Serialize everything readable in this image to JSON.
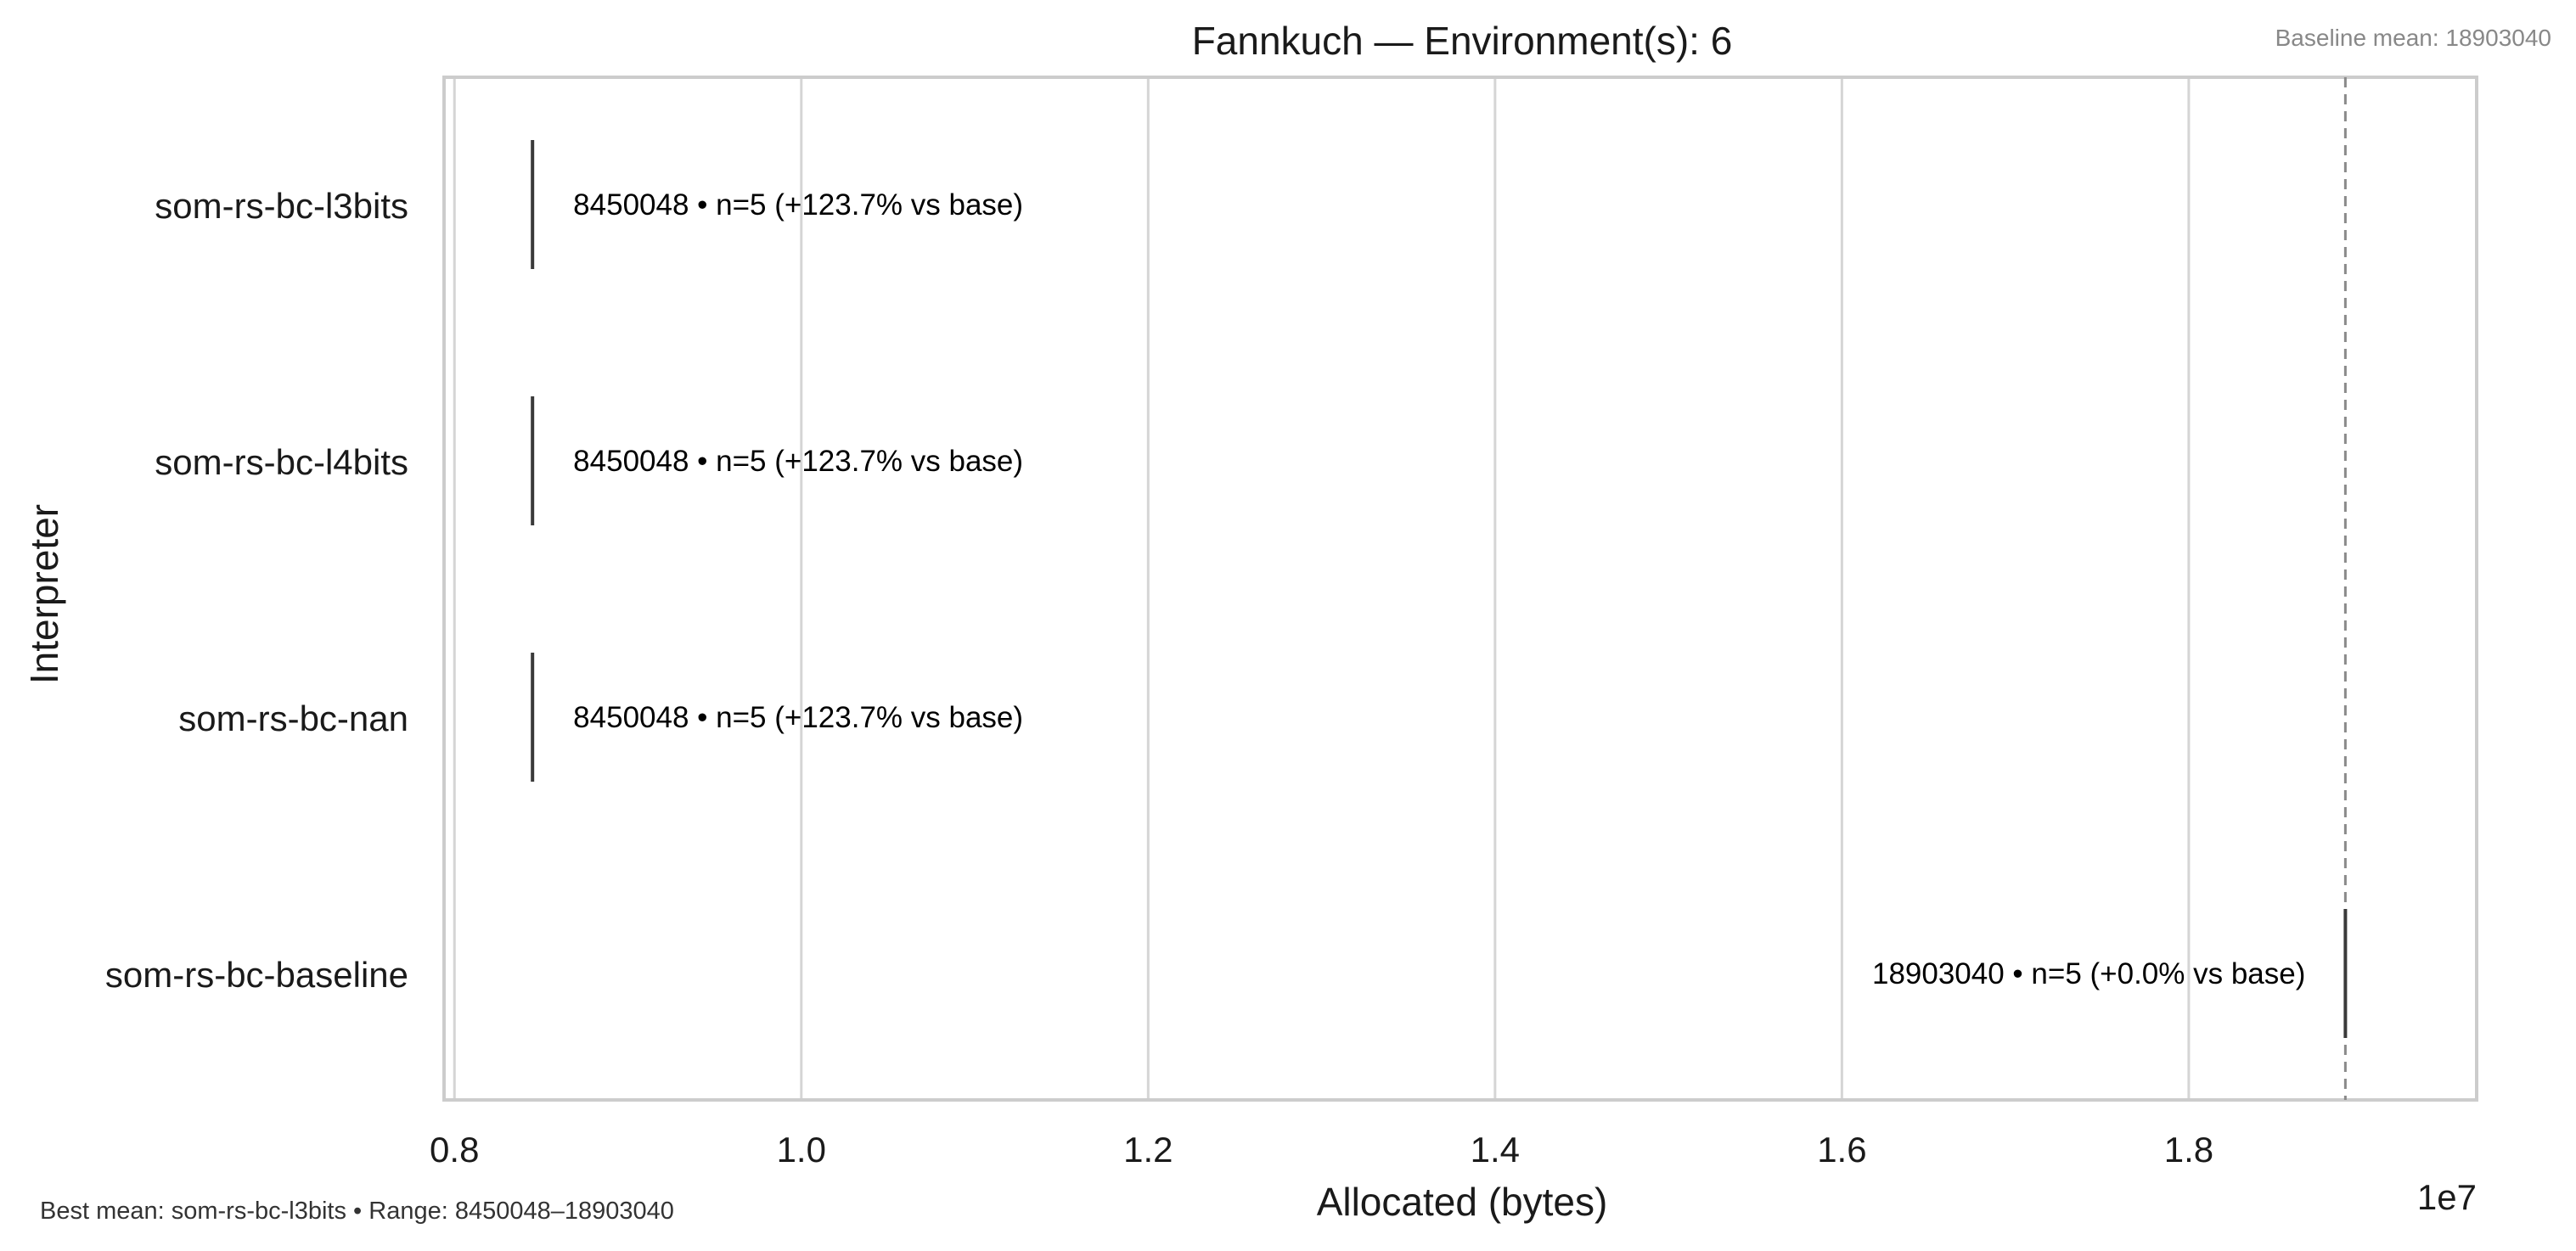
{
  "chart_data": {
    "type": "box",
    "orientation": "horizontal",
    "title": "Fannkuch — Environment(s): 6",
    "xlabel": "Allocated (bytes)",
    "ylabel": "Interpreter",
    "x_scale_label": "1e7",
    "x_ticks": [
      {
        "value": 8000000,
        "label": "0.8"
      },
      {
        "value": 10000000,
        "label": "1.0"
      },
      {
        "value": 12000000,
        "label": "1.2"
      },
      {
        "value": 14000000,
        "label": "1.4"
      },
      {
        "value": 16000000,
        "label": "1.6"
      },
      {
        "value": 18000000,
        "label": "1.8"
      }
    ],
    "xlim": [
      7940000,
      19660000
    ],
    "grid": "vertical",
    "categories": [
      "som-rs-bc-l3bits",
      "som-rs-bc-l4bits",
      "som-rs-bc-nan",
      "som-rs-bc-baseline"
    ],
    "values": [
      8450048,
      8450048,
      8450048,
      18903040
    ],
    "n": [
      5,
      5,
      5,
      5
    ],
    "annotations": [
      "8450048 • n=5 (+123.7% vs base)",
      "8450048 • n=5 (+123.7% vs base)",
      "8450048 • n=5 (+123.7% vs base)",
      "18903040 • n=5 (+0.0% vs base)"
    ],
    "baseline": {
      "value": 18903040,
      "label": "Baseline mean: 18903040"
    },
    "footer": "Best mean: som-rs-bc-l3bits • Range: 8450048–18903040",
    "colors": {
      "grid": "#d5d5d5",
      "frame": "#cccccc",
      "mark": "#3a3a3a",
      "baseline_line": "#8a8a8a",
      "muted_text": "#888888"
    }
  }
}
